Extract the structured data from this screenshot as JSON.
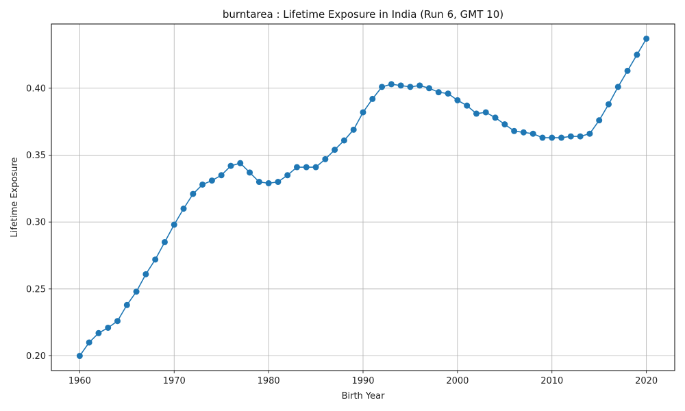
{
  "chart_data": {
    "type": "line",
    "title": "burntarea : Lifetime Exposure in India (Run 6, GMT 10)",
    "xlabel": "Birth Year",
    "ylabel": "Lifetime Exposure",
    "xlim": [
      1957,
      2023
    ],
    "ylim": [
      0.189,
      0.448
    ],
    "xticks": [
      1960,
      1970,
      1980,
      1990,
      2000,
      2010,
      2020
    ],
    "yticks": [
      "0.20",
      "0.25",
      "0.30",
      "0.35",
      "0.40"
    ],
    "grid": true,
    "series": [
      {
        "color": "#1f77b4",
        "marker": "circle",
        "x": [
          1960,
          1961,
          1962,
          1963,
          1964,
          1965,
          1966,
          1967,
          1968,
          1969,
          1970,
          1971,
          1972,
          1973,
          1974,
          1975,
          1976,
          1977,
          1978,
          1979,
          1980,
          1981,
          1982,
          1983,
          1984,
          1985,
          1986,
          1987,
          1988,
          1989,
          1990,
          1991,
          1992,
          1993,
          1994,
          1995,
          1996,
          1997,
          1998,
          1999,
          2000,
          2001,
          2002,
          2003,
          2004,
          2005,
          2006,
          2007,
          2008,
          2009,
          2010,
          2011,
          2012,
          2013,
          2014,
          2015,
          2016,
          2017,
          2018,
          2019,
          2020
        ],
        "values": [
          0.2,
          0.21,
          0.217,
          0.221,
          0.226,
          0.238,
          0.248,
          0.261,
          0.272,
          0.285,
          0.298,
          0.31,
          0.321,
          0.328,
          0.331,
          0.335,
          0.342,
          0.344,
          0.337,
          0.33,
          0.329,
          0.33,
          0.335,
          0.341,
          0.341,
          0.341,
          0.347,
          0.354,
          0.361,
          0.369,
          0.382,
          0.392,
          0.401,
          0.403,
          0.402,
          0.401,
          0.402,
          0.4,
          0.397,
          0.396,
          0.391,
          0.387,
          0.381,
          0.382,
          0.378,
          0.373,
          0.368,
          0.367,
          0.366,
          0.363,
          0.363,
          0.363,
          0.364,
          0.364,
          0.366,
          0.376,
          0.388,
          0.401,
          0.413,
          0.425,
          0.437
        ]
      }
    ]
  }
}
